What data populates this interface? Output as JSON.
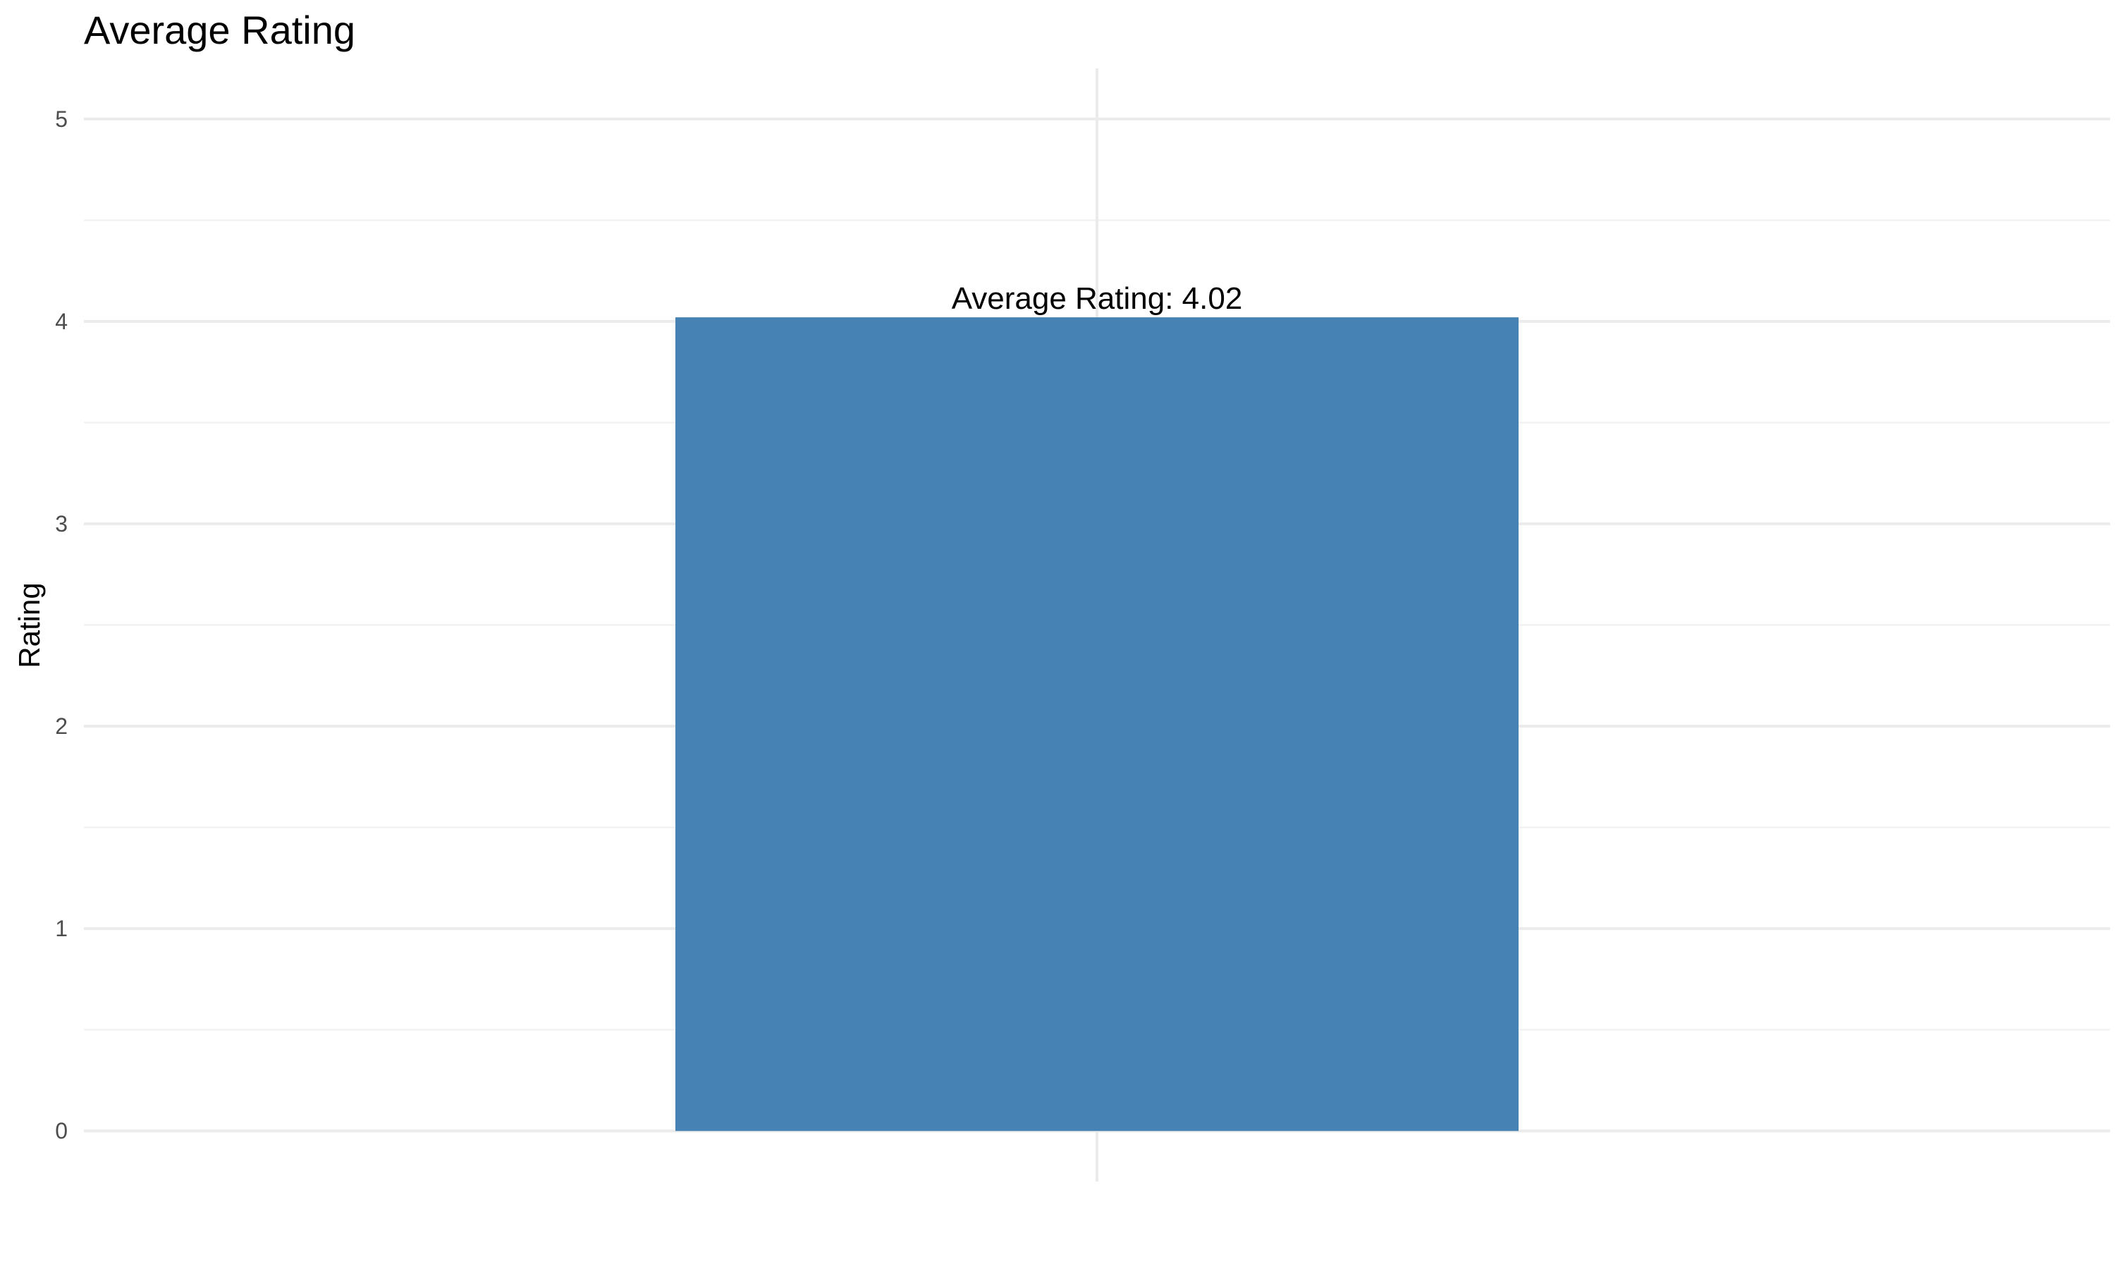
{
  "chart_data": {
    "type": "bar",
    "title": "Average Rating",
    "xlabel": "",
    "ylabel": "Rating",
    "categories": [
      ""
    ],
    "values": [
      4.02
    ],
    "data_labels": [
      "Average Rating: 4.02"
    ],
    "ylim": [
      -0.25,
      5.25
    ],
    "y_ticks": [
      0,
      1,
      2,
      3,
      4,
      5
    ],
    "y_minor_ticks": [
      0.5,
      1.5,
      2.5,
      3.5,
      4.5
    ],
    "grid": true,
    "legend": "none",
    "colors": {
      "bar": "#4682b4"
    }
  }
}
